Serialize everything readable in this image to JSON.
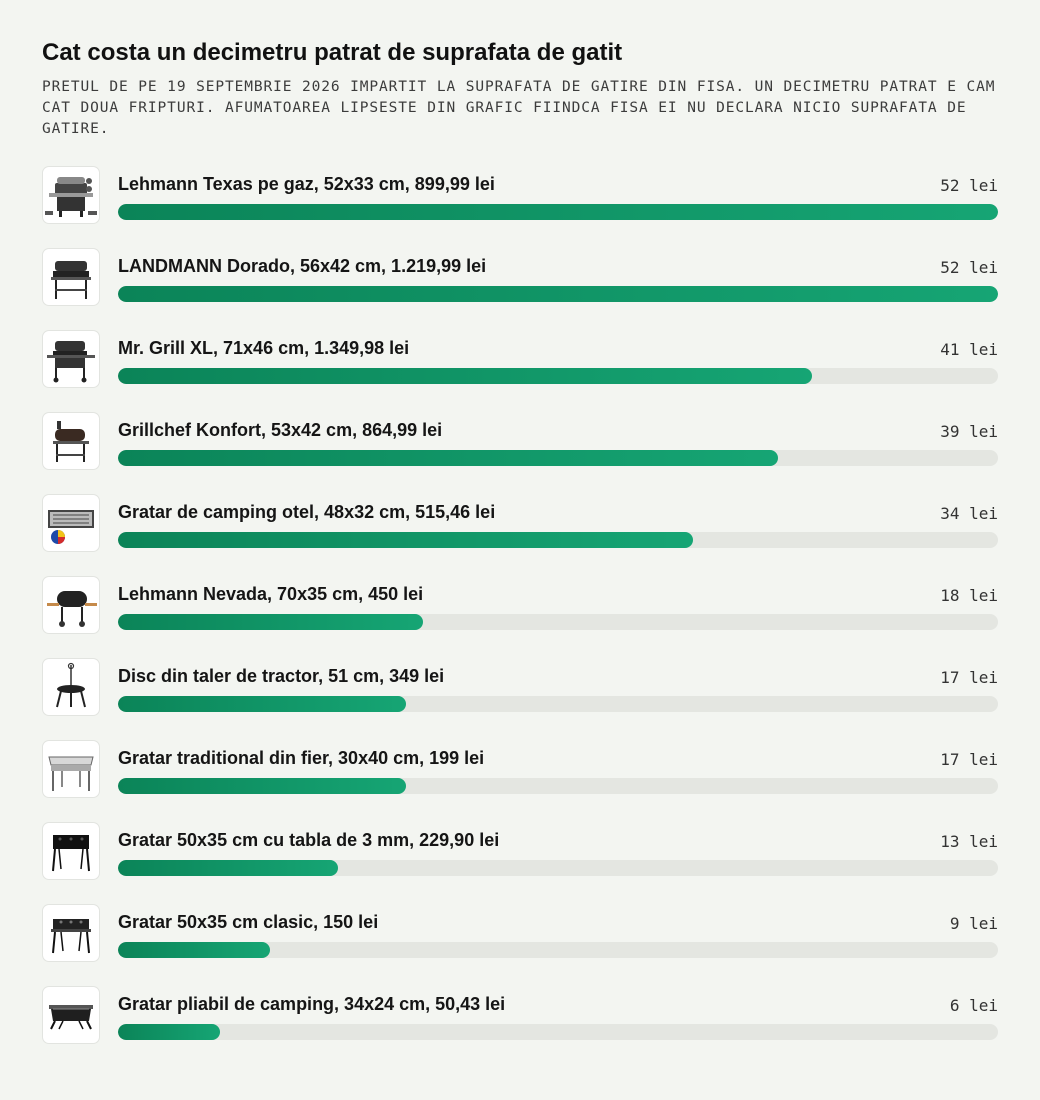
{
  "header": {
    "title": "Cat costa un decimetru patrat de suprafata de gatit",
    "subtitle": "PRETUL DE PE 19 SEPTEMBRIE 2026 IMPARTIT LA SUPRAFATA DE GATIRE DIN FISA. UN DECIMETRU PATRAT E CAM CAT DOUA FRIPTURI. AFUMATOAREA LIPSESTE DIN GRAFIC FIINDCA FISA EI NU DECLARA NICIO SUPRAFATA DE GATIRE."
  },
  "colors": {
    "bar_start": "#0b8458",
    "bar_end": "#16a574",
    "track": "#e4e6e1"
  },
  "chart_data": {
    "type": "bar",
    "orientation": "horizontal",
    "unit": "lei",
    "xlim": [
      0,
      52
    ],
    "grid": false,
    "categories": [
      "Lehmann Texas pe gaz, 52x33 cm, 899,99 lei",
      "LANDMANN Dorado, 56x42 cm, 1.219,99 lei",
      "Mr. Grill XL, 71x46 cm, 1.349,98 lei",
      "Grillchef Konfort, 53x42 cm, 864,99 lei",
      "Gratar de camping otel, 48x32 cm, 515,46 lei",
      "Lehmann Nevada, 70x35 cm, 450 lei",
      "Disc din taler de tractor, 51 cm, 349 lei",
      "Gratar traditional din fier, 30x40 cm, 199 lei",
      "Gratar 50x35 cm cu tabla de 3 mm, 229,90 lei",
      "Gratar 50x35 cm clasic, 150 lei",
      "Gratar pliabil de camping, 34x24 cm, 50,43 lei"
    ],
    "values": [
      52,
      52,
      41,
      39,
      34,
      18,
      17,
      17,
      13,
      9,
      6
    ],
    "value_labels": [
      "52 lei",
      "52 lei",
      "41 lei",
      "39 lei",
      "34 lei",
      "18 lei",
      "17 lei",
      "17 lei",
      "13 lei",
      "9 lei",
      "6 lei"
    ],
    "icons": [
      "gas-grill-icon",
      "charcoal-grill-icon",
      "charcoal-grill-xl-icon",
      "smoker-grill-icon",
      "camping-grill-icon",
      "barrel-grill-icon",
      "disc-grill-icon",
      "traditional-grill-icon",
      "grill-3mm-icon",
      "classic-grill-icon",
      "foldable-grill-icon"
    ]
  }
}
